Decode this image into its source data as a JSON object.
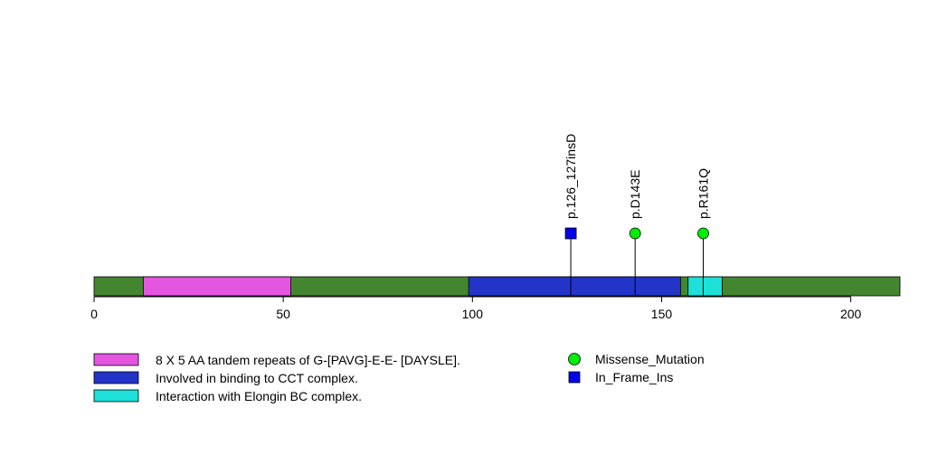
{
  "chart_data": {
    "type": "lollipop",
    "title": "",
    "xlabel": "",
    "ylabel": "",
    "xlim": [
      0,
      213
    ],
    "ticks": [
      0,
      50,
      100,
      150,
      200
    ],
    "protein_length": 213,
    "backbone_color": "#43862f",
    "domains": [
      {
        "start": 13,
        "end": 52,
        "color": "#e455e0",
        "legend": "8 X 5 AA tandem repeats of G-[PAVG]-E-E- [DAYSLE]."
      },
      {
        "start": 99,
        "end": 155,
        "color": "#2334c8",
        "legend": "Involved in binding to CCT complex."
      },
      {
        "start": 157,
        "end": 166,
        "color": "#1de0d8",
        "legend": "Interaction with Elongin BC complex."
      }
    ],
    "mutations": [
      {
        "pos": 126,
        "label": "p.126_127insD",
        "type": "In_Frame_Ins"
      },
      {
        "pos": 143,
        "label": "p.D143E",
        "type": "Missense_Mutation"
      },
      {
        "pos": 161,
        "label": "p.R161Q",
        "type": "Missense_Mutation"
      }
    ],
    "mutation_types": [
      {
        "name": "Missense_Mutation",
        "shape": "circle",
        "color": "#00ee00"
      },
      {
        "name": "In_Frame_Ins",
        "shape": "square",
        "color": "#0000ee"
      }
    ]
  }
}
